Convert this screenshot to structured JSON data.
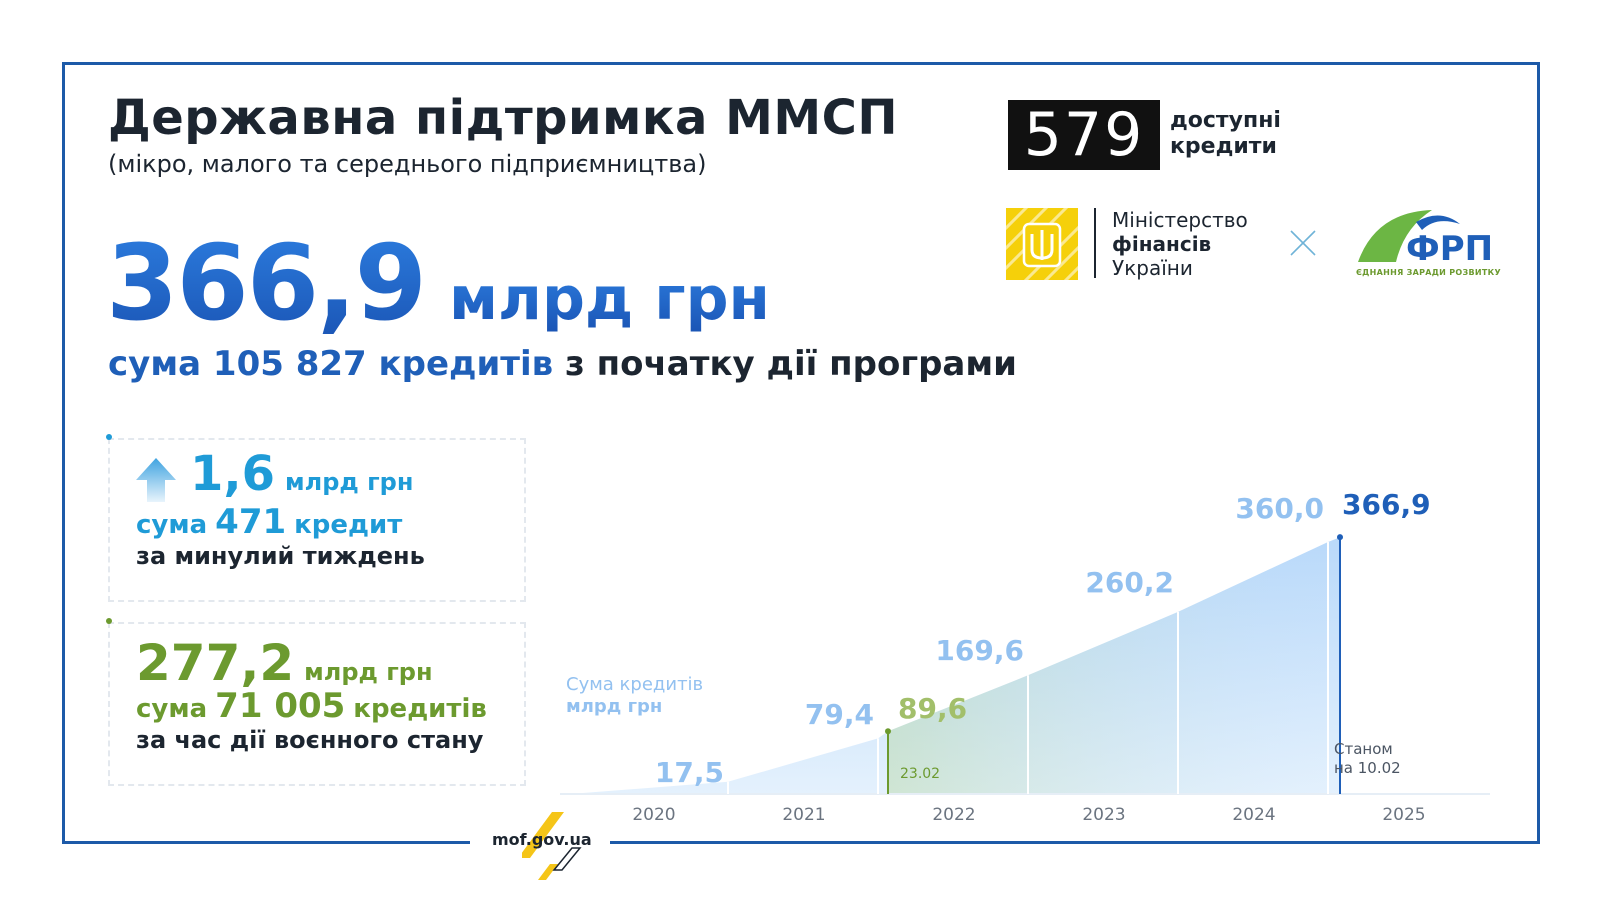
{
  "header": {
    "title": "Державна підтримка ММСП",
    "subtitle": "(мікро, малого та середнього підприємництва)"
  },
  "total": {
    "value": "366,9",
    "unit": "млрд грн",
    "sum_prefix": "сума",
    "loans_count": "105 827",
    "loans_word": "кредитів",
    "suffix": "з початку дії програми"
  },
  "weekly": {
    "value": "1,6",
    "unit": "млрд грн",
    "sum_prefix": "сума",
    "count": "471",
    "count_word": "кредит",
    "period": "за минулий тиждень",
    "icon": "arrow-up-icon"
  },
  "wartime": {
    "value": "277,2",
    "unit": "млрд грн",
    "sum_prefix": "сума",
    "count": "71 005",
    "count_word": "кредитів",
    "period": "за час дії воєнного стану"
  },
  "logos": {
    "program_mark": "579",
    "program_line1": "доступні",
    "program_line2": "кредити",
    "ministry_line1": "Міністерство",
    "ministry_line2": "фінансів",
    "ministry_line3": "України",
    "frp_mark": "ФРП",
    "frp_tagline": "ЄДНАННЯ ЗАРАДИ РОЗВИТКУ"
  },
  "footer": {
    "site": "mof.gov.ua"
  },
  "colors": {
    "primary_blue": "#1f5fb8",
    "light_blue": "#93c1f0",
    "sky_blue": "#1f9bd7",
    "green": "#6c9a2f",
    "light_green": "#a2bf6a",
    "dark": "#1c2530",
    "frame": "#1d5aa8"
  },
  "chart_data": {
    "type": "area",
    "ylabel_line1": "Сума кредитів",
    "ylabel_line2": "млрд грн",
    "x_categories": [
      "2020",
      "2021",
      "2022",
      "2023",
      "2024",
      "2025"
    ],
    "points": [
      {
        "x": "2020 start",
        "y": 0
      },
      {
        "x": "2020 end",
        "y": 17.5,
        "label": "17,5"
      },
      {
        "x": "2021 end",
        "y": 79.4,
        "label": "79,4"
      },
      {
        "x": "23.02.2022",
        "y": 89.6,
        "label": "89,6",
        "marker": "23.02",
        "highlight": "green"
      },
      {
        "x": "2022 end",
        "y": 169.6,
        "label": "169,6"
      },
      {
        "x": "2023 end",
        "y": 260.2,
        "label": "260,2"
      },
      {
        "x": "2024 end",
        "y": 360.0,
        "label": "360,0"
      },
      {
        "x": "10.02.2025",
        "y": 366.9,
        "label": "366,9",
        "highlight": "current"
      }
    ],
    "current_note_line1": "Станом",
    "current_note_line2": "на 10.02"
  }
}
